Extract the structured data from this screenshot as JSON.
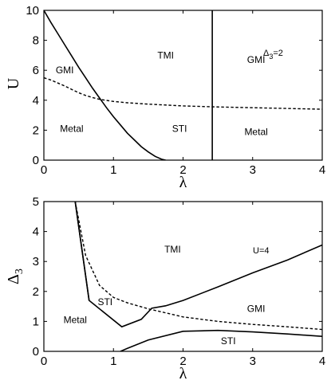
{
  "chart_data": [
    {
      "type": "line",
      "xlabel": "λ",
      "ylabel": "U",
      "xlim": [
        0,
        4
      ],
      "ylim": [
        0,
        10
      ],
      "xticks": [
        "0",
        "1",
        "2",
        "3",
        "4"
      ],
      "yticks": [
        "0",
        "2",
        "4",
        "6",
        "8",
        "10"
      ],
      "annotation": {
        "base": "Δ",
        "sub": "3",
        "rest": "=2"
      },
      "regions": [
        {
          "label": "TMI",
          "x": 1.75,
          "y": 7.0
        },
        {
          "label": "GMI",
          "x": 0.3,
          "y": 6.0
        },
        {
          "label": "GMI",
          "x": 3.05,
          "y": 6.7
        },
        {
          "label": "Metal",
          "x": 0.4,
          "y": 2.1
        },
        {
          "label": "STI",
          "x": 1.95,
          "y": 2.1
        },
        {
          "label": "Metal",
          "x": 3.05,
          "y": 1.9
        }
      ],
      "series": [
        {
          "style": "solid",
          "x": [
            0.0,
            0.1,
            0.2,
            0.3,
            0.4,
            0.5,
            0.6,
            0.7,
            0.8,
            0.9,
            1.0,
            1.1,
            1.2,
            1.3,
            1.4,
            1.5,
            1.6,
            1.7,
            1.75
          ],
          "y": [
            10.0,
            9.2,
            8.45,
            7.7,
            6.95,
            6.2,
            5.5,
            4.8,
            4.15,
            3.5,
            2.9,
            2.35,
            1.8,
            1.35,
            0.9,
            0.55,
            0.25,
            0.05,
            0.0
          ]
        },
        {
          "style": "dashed",
          "x": [
            0.0,
            0.1,
            0.2,
            0.3,
            0.4,
            0.5,
            0.6,
            0.7,
            0.8,
            1.0,
            1.2,
            1.5,
            2.0,
            2.5,
            3.0,
            3.5,
            4.0
          ],
          "y": [
            5.5,
            5.35,
            5.15,
            4.95,
            4.72,
            4.5,
            4.32,
            4.18,
            4.06,
            3.92,
            3.83,
            3.74,
            3.62,
            3.55,
            3.5,
            3.45,
            3.4
          ]
        },
        {
          "style": "solid",
          "x": [
            2.42,
            2.42
          ],
          "y": [
            0.0,
            10.0
          ]
        }
      ]
    },
    {
      "type": "line",
      "xlabel": "λ",
      "ylabel": "Δ",
      "ylabel_sub": "3",
      "xlim": [
        0,
        4
      ],
      "ylim": [
        0,
        5
      ],
      "xticks": [
        "0",
        "1",
        "2",
        "3",
        "4"
      ],
      "yticks": [
        "0",
        "1",
        "2",
        "3",
        "4",
        "5"
      ],
      "annotation": {
        "base": "U=4",
        "sub": "",
        "rest": ""
      },
      "regions": [
        {
          "label": "TMI",
          "x": 1.85,
          "y": 3.4
        },
        {
          "label": "STI",
          "x": 0.88,
          "y": 1.65
        },
        {
          "label": "GMI",
          "x": 3.05,
          "y": 1.42
        },
        {
          "label": "Metal",
          "x": 0.45,
          "y": 1.05
        },
        {
          "label": "STI",
          "x": 2.65,
          "y": 0.35
        }
      ],
      "series": [
        {
          "style": "solid",
          "x": [
            0.45,
            0.65,
            1.12,
            1.4,
            1.55,
            1.75,
            2.0,
            2.5,
            3.0,
            3.5,
            4.0
          ],
          "y": [
            5.0,
            1.7,
            0.82,
            1.07,
            1.44,
            1.52,
            1.7,
            2.15,
            2.62,
            3.05,
            3.55
          ]
        },
        {
          "style": "dashed",
          "x": [
            0.45,
            0.6,
            0.8,
            1.0,
            1.2,
            1.5,
            2.0,
            2.5,
            3.0,
            3.5,
            4.0
          ],
          "y": [
            5.0,
            3.2,
            2.2,
            1.8,
            1.62,
            1.42,
            1.15,
            1.0,
            0.9,
            0.82,
            0.73
          ]
        },
        {
          "style": "solid",
          "x": [
            0.45,
            0.65
          ],
          "y": [
            5.0,
            1.7
          ]
        },
        {
          "style": "solid",
          "x": [
            1.1,
            1.2,
            1.5,
            2.0,
            2.5,
            3.0,
            3.5,
            4.0
          ],
          "y": [
            0.0,
            0.1,
            0.38,
            0.67,
            0.7,
            0.65,
            0.58,
            0.5
          ]
        }
      ]
    }
  ]
}
